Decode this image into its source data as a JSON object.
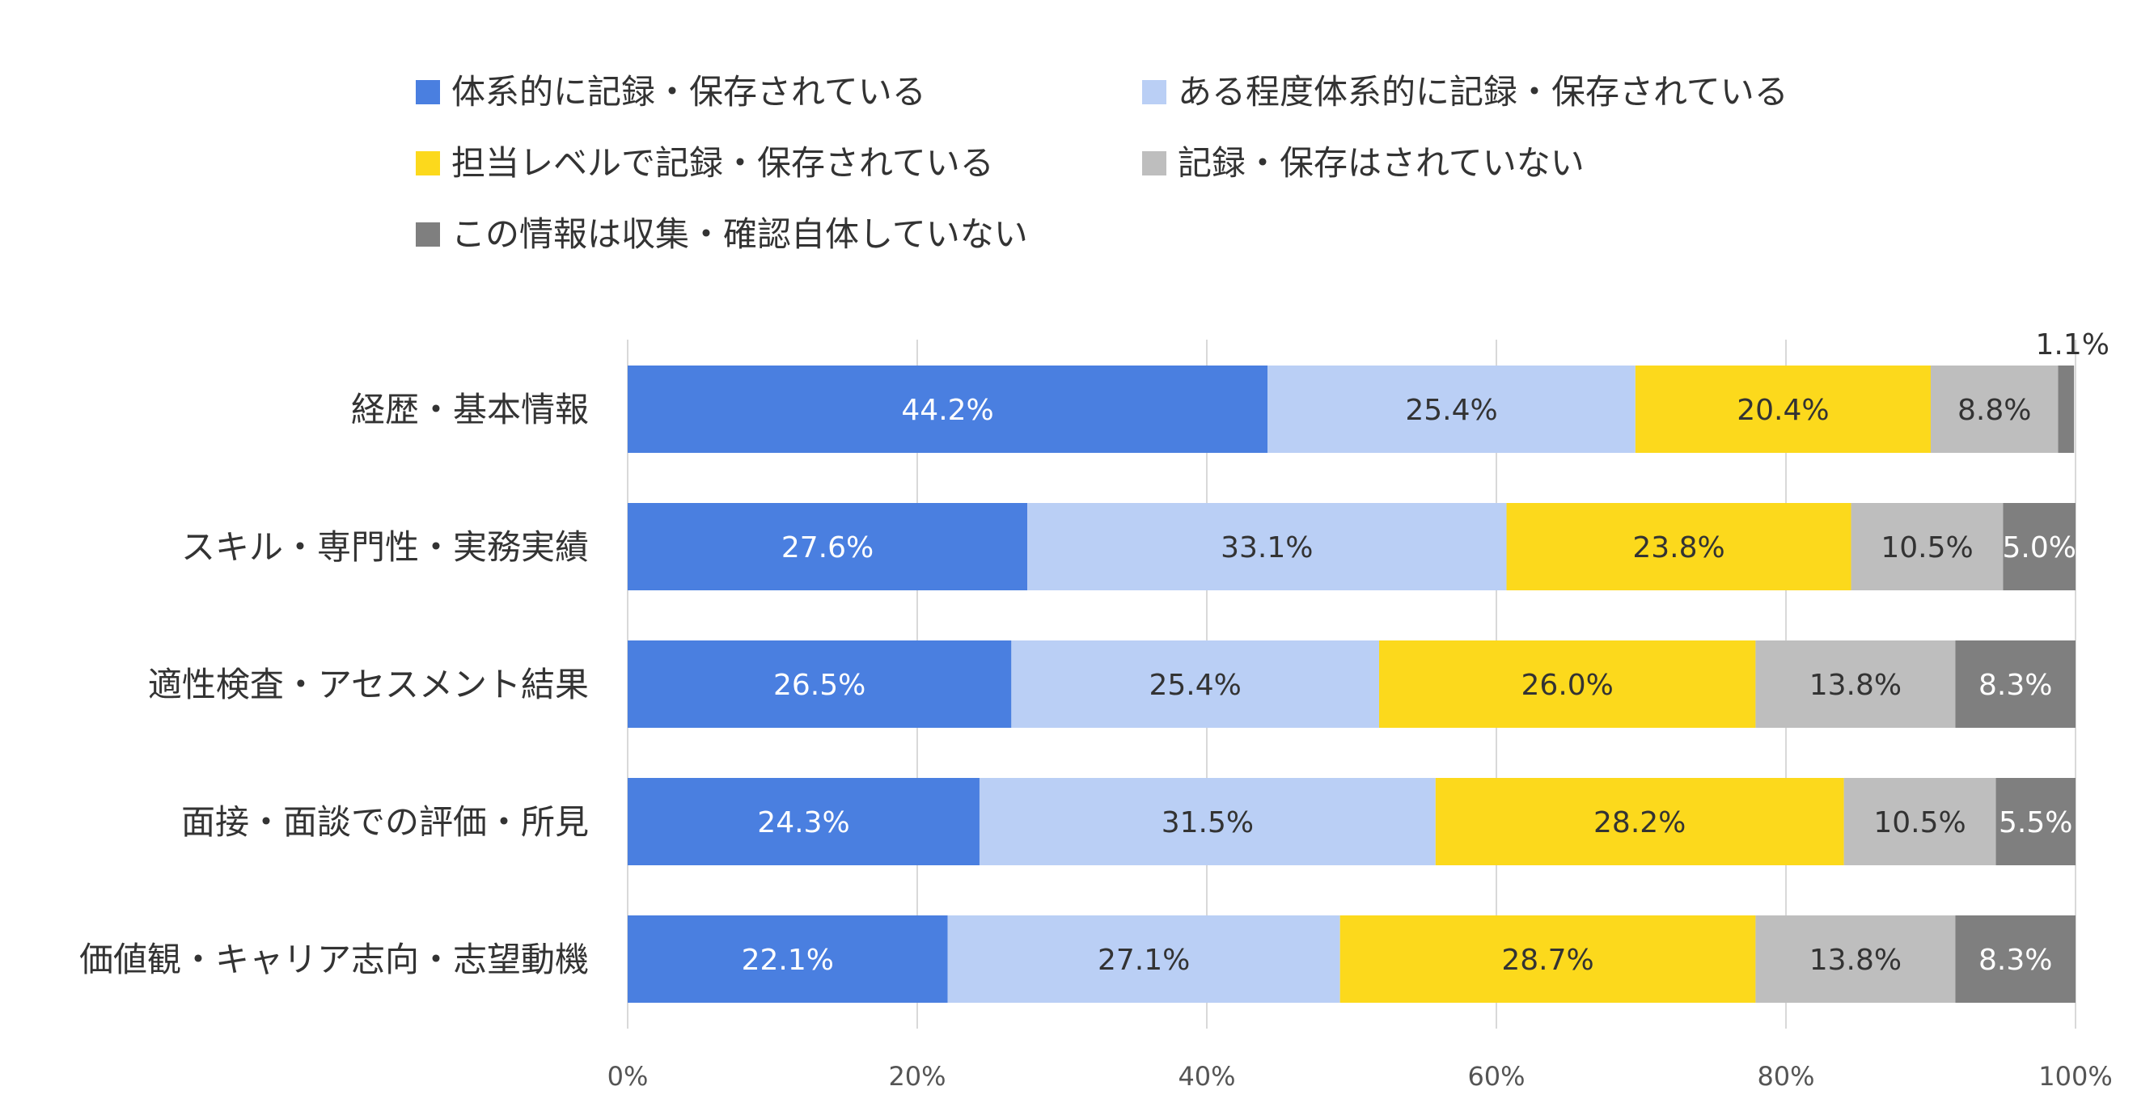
{
  "chart_data": {
    "type": "bar",
    "orientation": "horizontal",
    "stacked": "percent",
    "categories": [
      "経歴・基本情報",
      "スキル・専門性・実務実績",
      "適性検査・アセスメント結果",
      "面接・面談での評価・所見",
      "価値観・キャリア志向・志望動機"
    ],
    "series": [
      {
        "name": "体系的に記録・保存されている",
        "color": "#4A7FE0",
        "label_color": "#ffffff",
        "values": [
          44.2,
          27.6,
          26.5,
          24.3,
          22.1
        ],
        "labels": [
          "44.2%",
          "27.6%",
          "26.5%",
          "24.3%",
          "22.1%"
        ]
      },
      {
        "name": "ある程度体系的に記録・保存されている",
        "color": "#BACFF5",
        "label_color": "#333333",
        "values": [
          25.4,
          33.1,
          25.4,
          31.5,
          27.1
        ],
        "labels": [
          "25.4%",
          "33.1%",
          "25.4%",
          "31.5%",
          "27.1%"
        ]
      },
      {
        "name": "担当レベルで記録・保存されている",
        "color": "#FCD91C",
        "label_color": "#333333",
        "values": [
          20.4,
          23.8,
          26.0,
          28.2,
          28.7
        ],
        "labels": [
          "20.4%",
          "23.8%",
          "26.0%",
          "28.2%",
          "28.7%"
        ]
      },
      {
        "name": "記録・保存はされていない",
        "color": "#BEBEBE",
        "label_color": "#333333",
        "values": [
          8.8,
          10.5,
          13.8,
          10.5,
          13.8
        ],
        "labels": [
          "8.8%",
          "10.5%",
          "13.8%",
          "10.5%",
          "13.8%"
        ]
      },
      {
        "name": "この情報は収集・確認自体していない",
        "color": "#7F7F7F",
        "label_color": "#ffffff",
        "values": [
          1.1,
          5.0,
          8.3,
          5.5,
          8.3
        ],
        "labels": [
          "1.1%",
          "5.0%",
          "8.3%",
          "5.5%",
          "8.3%"
        ]
      }
    ],
    "x_ticks": [
      "0%",
      "20%",
      "40%",
      "60%",
      "80%",
      "100%"
    ],
    "xlim": [
      0,
      100
    ],
    "grid": true,
    "legend_position": "top"
  }
}
